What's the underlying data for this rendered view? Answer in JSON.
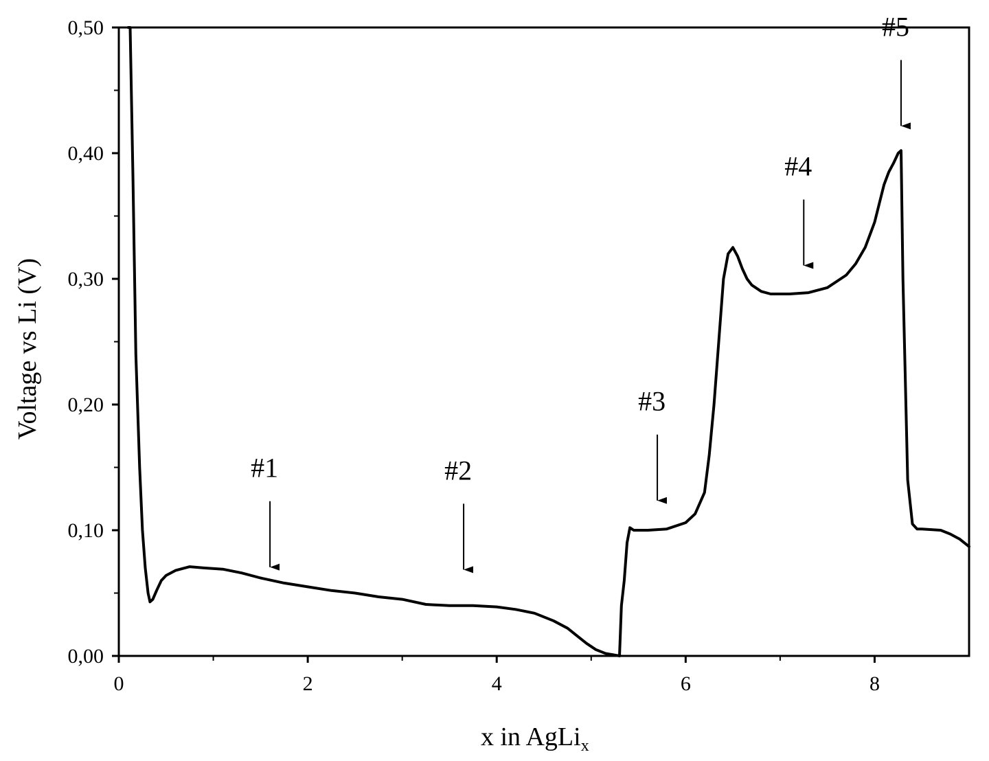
{
  "chart_data": {
    "type": "line",
    "title": "",
    "xlabel": "x in AgLi",
    "xlabel_subscript": "x",
    "ylabel": "Voltage vs Li (V)",
    "xlim": [
      0,
      9
    ],
    "ylim": [
      0,
      0.5
    ],
    "x_ticks": [
      0,
      2,
      4,
      6,
      8
    ],
    "x_tick_labels": [
      "0",
      "2",
      "4",
      "6",
      "8"
    ],
    "y_ticks": [
      0,
      0.1,
      0.2,
      0.3,
      0.4,
      0.5
    ],
    "y_tick_labels": [
      "0,00",
      "0,10",
      "0,20",
      "0,30",
      "0,40",
      "0,50"
    ],
    "grid": false,
    "legend": "none",
    "line_color": "#000000",
    "series": [
      {
        "x": [
          0.1,
          0.12,
          0.15,
          0.18,
          0.22,
          0.25,
          0.28,
          0.31,
          0.33,
          0.36,
          0.4,
          0.45,
          0.5,
          0.6,
          0.75,
          0.9,
          1.1,
          1.3,
          1.5,
          1.75,
          2.0,
          2.25,
          2.5,
          2.75,
          3.0,
          3.25,
          3.5,
          3.75,
          4.0,
          4.2,
          4.4,
          4.6,
          4.75,
          4.85,
          4.95,
          5.05,
          5.15,
          5.3,
          5.31,
          5.32,
          5.35,
          5.38,
          5.41,
          5.45,
          5.5,
          5.6,
          5.8,
          6.0,
          6.1,
          6.2,
          6.25,
          6.3,
          6.35,
          6.4,
          6.45,
          6.5,
          6.55,
          6.6,
          6.65,
          6.7,
          6.8,
          6.9,
          7.0,
          7.1,
          7.3,
          7.5,
          7.7,
          7.8,
          7.9,
          8.0,
          8.05,
          8.1,
          8.15,
          8.2,
          8.25,
          8.28,
          8.3,
          8.35,
          8.4,
          8.45,
          8.5,
          8.7,
          8.8,
          8.9,
          9.0
        ],
        "y": [
          0.52,
          0.5,
          0.38,
          0.24,
          0.15,
          0.1,
          0.07,
          0.05,
          0.043,
          0.045,
          0.052,
          0.06,
          0.064,
          0.068,
          0.071,
          0.07,
          0.069,
          0.066,
          0.062,
          0.058,
          0.055,
          0.052,
          0.05,
          0.047,
          0.045,
          0.041,
          0.04,
          0.04,
          0.039,
          0.037,
          0.034,
          0.028,
          0.022,
          0.016,
          0.01,
          0.005,
          0.002,
          0.0,
          0.02,
          0.04,
          0.06,
          0.09,
          0.102,
          0.1,
          0.1,
          0.1,
          0.101,
          0.106,
          0.113,
          0.13,
          0.16,
          0.2,
          0.25,
          0.3,
          0.32,
          0.325,
          0.318,
          0.308,
          0.3,
          0.295,
          0.29,
          0.288,
          0.288,
          0.288,
          0.289,
          0.293,
          0.303,
          0.312,
          0.325,
          0.345,
          0.36,
          0.375,
          0.385,
          0.392,
          0.4,
          0.402,
          0.3,
          0.14,
          0.105,
          0.101,
          0.101,
          0.1,
          0.097,
          0.093,
          0.087
        ]
      }
    ],
    "annotations": [
      {
        "text": "#1",
        "x": 1.6,
        "y": 0.063
      },
      {
        "text": "#2",
        "x": 3.65,
        "y": 0.061
      },
      {
        "text": "#3",
        "x": 5.7,
        "y": 0.116
      },
      {
        "text": "#4",
        "x": 7.25,
        "y": 0.303
      },
      {
        "text": "#5",
        "x": 8.28,
        "y": 0.414
      }
    ]
  }
}
